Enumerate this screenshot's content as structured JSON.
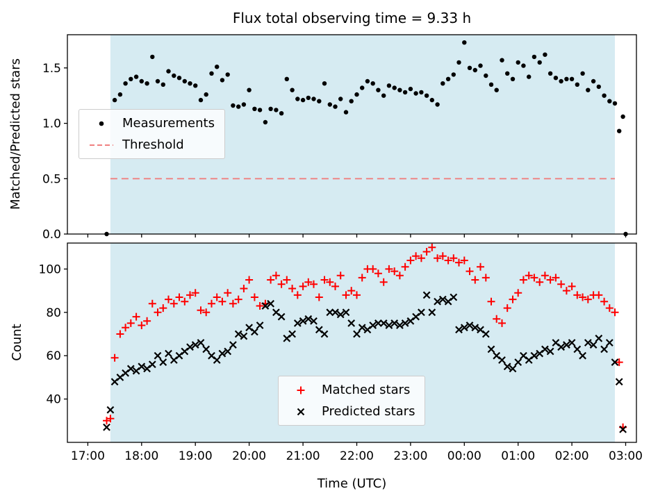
{
  "figure": {
    "background_color": "#ffffff",
    "shade_color": "#add8e6",
    "shade_alpha": 0.5,
    "shade_region": [
      17.42,
      26.8
    ],
    "axis_color": "#000000",
    "text_color": "#000000"
  },
  "chart_data": [
    {
      "type": "scatter",
      "name": "ratio-plot",
      "title": "Flux total observing time = 9.33 h",
      "ylabel": "Matched/Predicted stars",
      "xlim": [
        16.62,
        27.2
      ],
      "ylim": [
        0,
        1.8
      ],
      "grid": false,
      "legend_position": "center left",
      "ytick_vals": [
        0.0,
        0.5,
        1.0,
        1.5
      ],
      "ytick_labels": [
        "0.0",
        "0.5",
        "1.0",
        "1.5"
      ],
      "xtick_vals": [
        17,
        18,
        19,
        20,
        21,
        22,
        23,
        24,
        25,
        26,
        27
      ],
      "xtick_labels": [
        "17:00",
        "18:00",
        "19:00",
        "20:00",
        "21:00",
        "22:00",
        "23:00",
        "00:00",
        "01:00",
        "02:00",
        "03:00"
      ],
      "show_xtick_labels": false,
      "series": [
        {
          "name": "Measurements",
          "marker": "dot",
          "color": "#000000",
          "x": [
            17.35,
            17.5,
            17.6,
            17.7,
            17.8,
            17.9,
            18.0,
            18.1,
            18.2,
            18.3,
            18.4,
            18.5,
            18.6,
            18.7,
            18.8,
            18.9,
            19.0,
            19.1,
            19.2,
            19.3,
            19.4,
            19.5,
            19.6,
            19.7,
            19.8,
            19.9,
            20.0,
            20.1,
            20.2,
            20.3,
            20.4,
            20.5,
            20.6,
            20.7,
            20.8,
            20.9,
            21.0,
            21.1,
            21.2,
            21.3,
            21.4,
            21.5,
            21.6,
            21.7,
            21.8,
            21.9,
            22.0,
            22.1,
            22.2,
            22.3,
            22.4,
            22.5,
            22.6,
            22.7,
            22.8,
            22.9,
            23.0,
            23.1,
            23.2,
            23.3,
            23.4,
            23.5,
            23.6,
            23.7,
            23.8,
            23.9,
            24.0,
            24.1,
            24.2,
            24.3,
            24.4,
            24.5,
            24.6,
            24.7,
            24.8,
            24.9,
            25.0,
            25.1,
            25.2,
            25.3,
            25.4,
            25.5,
            25.6,
            25.7,
            25.8,
            25.9,
            26.0,
            26.1,
            26.2,
            26.3,
            26.4,
            26.5,
            26.6,
            26.7,
            26.8,
            26.88,
            26.95,
            27.0
          ],
          "y": [
            0.0,
            1.21,
            1.26,
            1.36,
            1.4,
            1.42,
            1.38,
            1.36,
            1.6,
            1.38,
            1.35,
            1.47,
            1.43,
            1.41,
            1.38,
            1.36,
            1.34,
            1.21,
            1.26,
            1.45,
            1.51,
            1.39,
            1.44,
            1.16,
            1.15,
            1.17,
            1.3,
            1.13,
            1.12,
            1.01,
            1.13,
            1.12,
            1.09,
            1.4,
            1.3,
            1.22,
            1.21,
            1.23,
            1.22,
            1.2,
            1.36,
            1.17,
            1.15,
            1.22,
            1.1,
            1.2,
            1.26,
            1.32,
            1.38,
            1.36,
            1.3,
            1.25,
            1.34,
            1.32,
            1.3,
            1.28,
            1.31,
            1.27,
            1.28,
            1.25,
            1.21,
            1.17,
            1.36,
            1.4,
            1.44,
            1.55,
            1.73,
            1.5,
            1.48,
            1.52,
            1.43,
            1.35,
            1.3,
            1.57,
            1.45,
            1.4,
            1.55,
            1.52,
            1.42,
            1.6,
            1.55,
            1.62,
            1.45,
            1.41,
            1.38,
            1.4,
            1.4,
            1.35,
            1.45,
            1.3,
            1.38,
            1.33,
            1.25,
            1.2,
            1.18,
            0.93,
            1.06,
            0.0
          ]
        },
        {
          "name": "Threshold",
          "marker": "dashed-line",
          "color": "#f08080",
          "y_value": 0.5,
          "x_start": 17.42,
          "x_end": 26.8
        }
      ]
    },
    {
      "type": "scatter",
      "name": "count-plot",
      "ylabel": "Count",
      "xlabel": "Time (UTC)",
      "xlim": [
        16.62,
        27.2
      ],
      "ylim": [
        20,
        112
      ],
      "grid": false,
      "legend_position": "lower center",
      "ytick_vals": [
        40,
        60,
        80,
        100
      ],
      "ytick_labels": [
        "40",
        "60",
        "80",
        "100"
      ],
      "xtick_vals": [
        17,
        18,
        19,
        20,
        21,
        22,
        23,
        24,
        25,
        26,
        27
      ],
      "xtick_labels": [
        "17:00",
        "18:00",
        "19:00",
        "20:00",
        "21:00",
        "22:00",
        "23:00",
        "00:00",
        "01:00",
        "02:00",
        "03:00"
      ],
      "show_xtick_labels": true,
      "series": [
        {
          "name": "Matched stars",
          "marker": "plus",
          "color": "#ff0000",
          "x": [
            17.35,
            17.42,
            17.5,
            17.6,
            17.7,
            17.8,
            17.9,
            18.0,
            18.1,
            18.2,
            18.3,
            18.4,
            18.5,
            18.6,
            18.7,
            18.8,
            18.9,
            19.0,
            19.1,
            19.2,
            19.3,
            19.4,
            19.5,
            19.6,
            19.7,
            19.8,
            19.9,
            20.0,
            20.1,
            20.2,
            20.3,
            20.4,
            20.5,
            20.6,
            20.7,
            20.8,
            20.9,
            21.0,
            21.1,
            21.2,
            21.3,
            21.4,
            21.5,
            21.6,
            21.7,
            21.8,
            21.9,
            22.0,
            22.1,
            22.2,
            22.3,
            22.4,
            22.5,
            22.6,
            22.7,
            22.8,
            22.9,
            23.0,
            23.1,
            23.2,
            23.3,
            23.4,
            23.5,
            23.6,
            23.7,
            23.8,
            23.9,
            24.0,
            24.1,
            24.2,
            24.3,
            24.4,
            24.5,
            24.6,
            24.7,
            24.8,
            24.9,
            25.0,
            25.1,
            25.2,
            25.3,
            25.4,
            25.5,
            25.6,
            25.7,
            25.8,
            25.9,
            26.0,
            26.1,
            26.2,
            26.3,
            26.4,
            26.5,
            26.6,
            26.7,
            26.8,
            26.88,
            26.95
          ],
          "y": [
            30,
            31,
            59,
            70,
            73,
            75,
            78,
            74,
            76,
            84,
            80,
            82,
            86,
            84,
            87,
            85,
            88,
            89,
            81,
            80,
            84,
            87,
            85,
            89,
            84,
            86,
            91,
            95,
            87,
            83,
            84,
            95,
            97,
            93,
            95,
            91,
            88,
            92,
            94,
            93,
            87,
            95,
            94,
            92,
            97,
            88,
            90,
            88,
            96,
            100,
            100,
            98,
            94,
            100,
            99,
            97,
            101,
            104,
            106,
            105,
            108,
            110,
            105,
            106,
            104,
            105,
            103,
            104,
            99,
            95,
            101,
            96,
            85,
            77,
            75,
            82,
            86,
            89,
            95,
            97,
            96,
            94,
            97,
            95,
            96,
            93,
            90,
            92,
            88,
            87,
            86,
            88,
            88,
            85,
            82,
            80,
            57,
            27
          ]
        },
        {
          "name": "Predicted stars",
          "marker": "x",
          "color": "#000000",
          "x": [
            17.35,
            17.42,
            17.5,
            17.6,
            17.7,
            17.8,
            17.9,
            18.0,
            18.1,
            18.2,
            18.3,
            18.4,
            18.5,
            18.6,
            18.7,
            18.8,
            18.9,
            19.0,
            19.1,
            19.2,
            19.3,
            19.4,
            19.5,
            19.6,
            19.7,
            19.8,
            19.9,
            20.0,
            20.1,
            20.2,
            20.3,
            20.4,
            20.5,
            20.6,
            20.7,
            20.8,
            20.9,
            21.0,
            21.1,
            21.2,
            21.3,
            21.4,
            21.5,
            21.6,
            21.7,
            21.8,
            21.9,
            22.0,
            22.1,
            22.2,
            22.3,
            22.4,
            22.5,
            22.6,
            22.7,
            22.8,
            22.9,
            23.0,
            23.1,
            23.2,
            23.3,
            23.4,
            23.5,
            23.6,
            23.7,
            23.8,
            23.9,
            24.0,
            24.1,
            24.2,
            24.3,
            24.4,
            24.5,
            24.6,
            24.7,
            24.8,
            24.9,
            25.0,
            25.1,
            25.2,
            25.3,
            25.4,
            25.5,
            25.6,
            25.7,
            25.8,
            25.9,
            26.0,
            26.1,
            26.2,
            26.3,
            26.4,
            26.5,
            26.6,
            26.7,
            26.8,
            26.88,
            26.95
          ],
          "y": [
            27,
            35,
            48,
            50,
            52,
            54,
            53,
            55,
            54,
            56,
            60,
            57,
            61,
            58,
            60,
            62,
            64,
            65,
            66,
            63,
            60,
            58,
            61,
            62,
            65,
            70,
            69,
            73,
            71,
            74,
            83,
            84,
            80,
            78,
            68,
            70,
            75,
            76,
            77,
            76,
            72,
            70,
            80,
            80,
            79,
            80,
            75,
            70,
            73,
            72,
            74,
            75,
            75,
            74,
            75,
            74,
            75,
            76,
            78,
            80,
            88,
            80,
            85,
            86,
            85,
            87,
            72,
            73,
            74,
            73,
            72,
            70,
            63,
            60,
            58,
            55,
            54,
            57,
            60,
            58,
            60,
            61,
            63,
            62,
            66,
            64,
            65,
            66,
            63,
            60,
            66,
            65,
            68,
            63,
            66,
            57,
            48,
            26
          ]
        }
      ]
    }
  ]
}
